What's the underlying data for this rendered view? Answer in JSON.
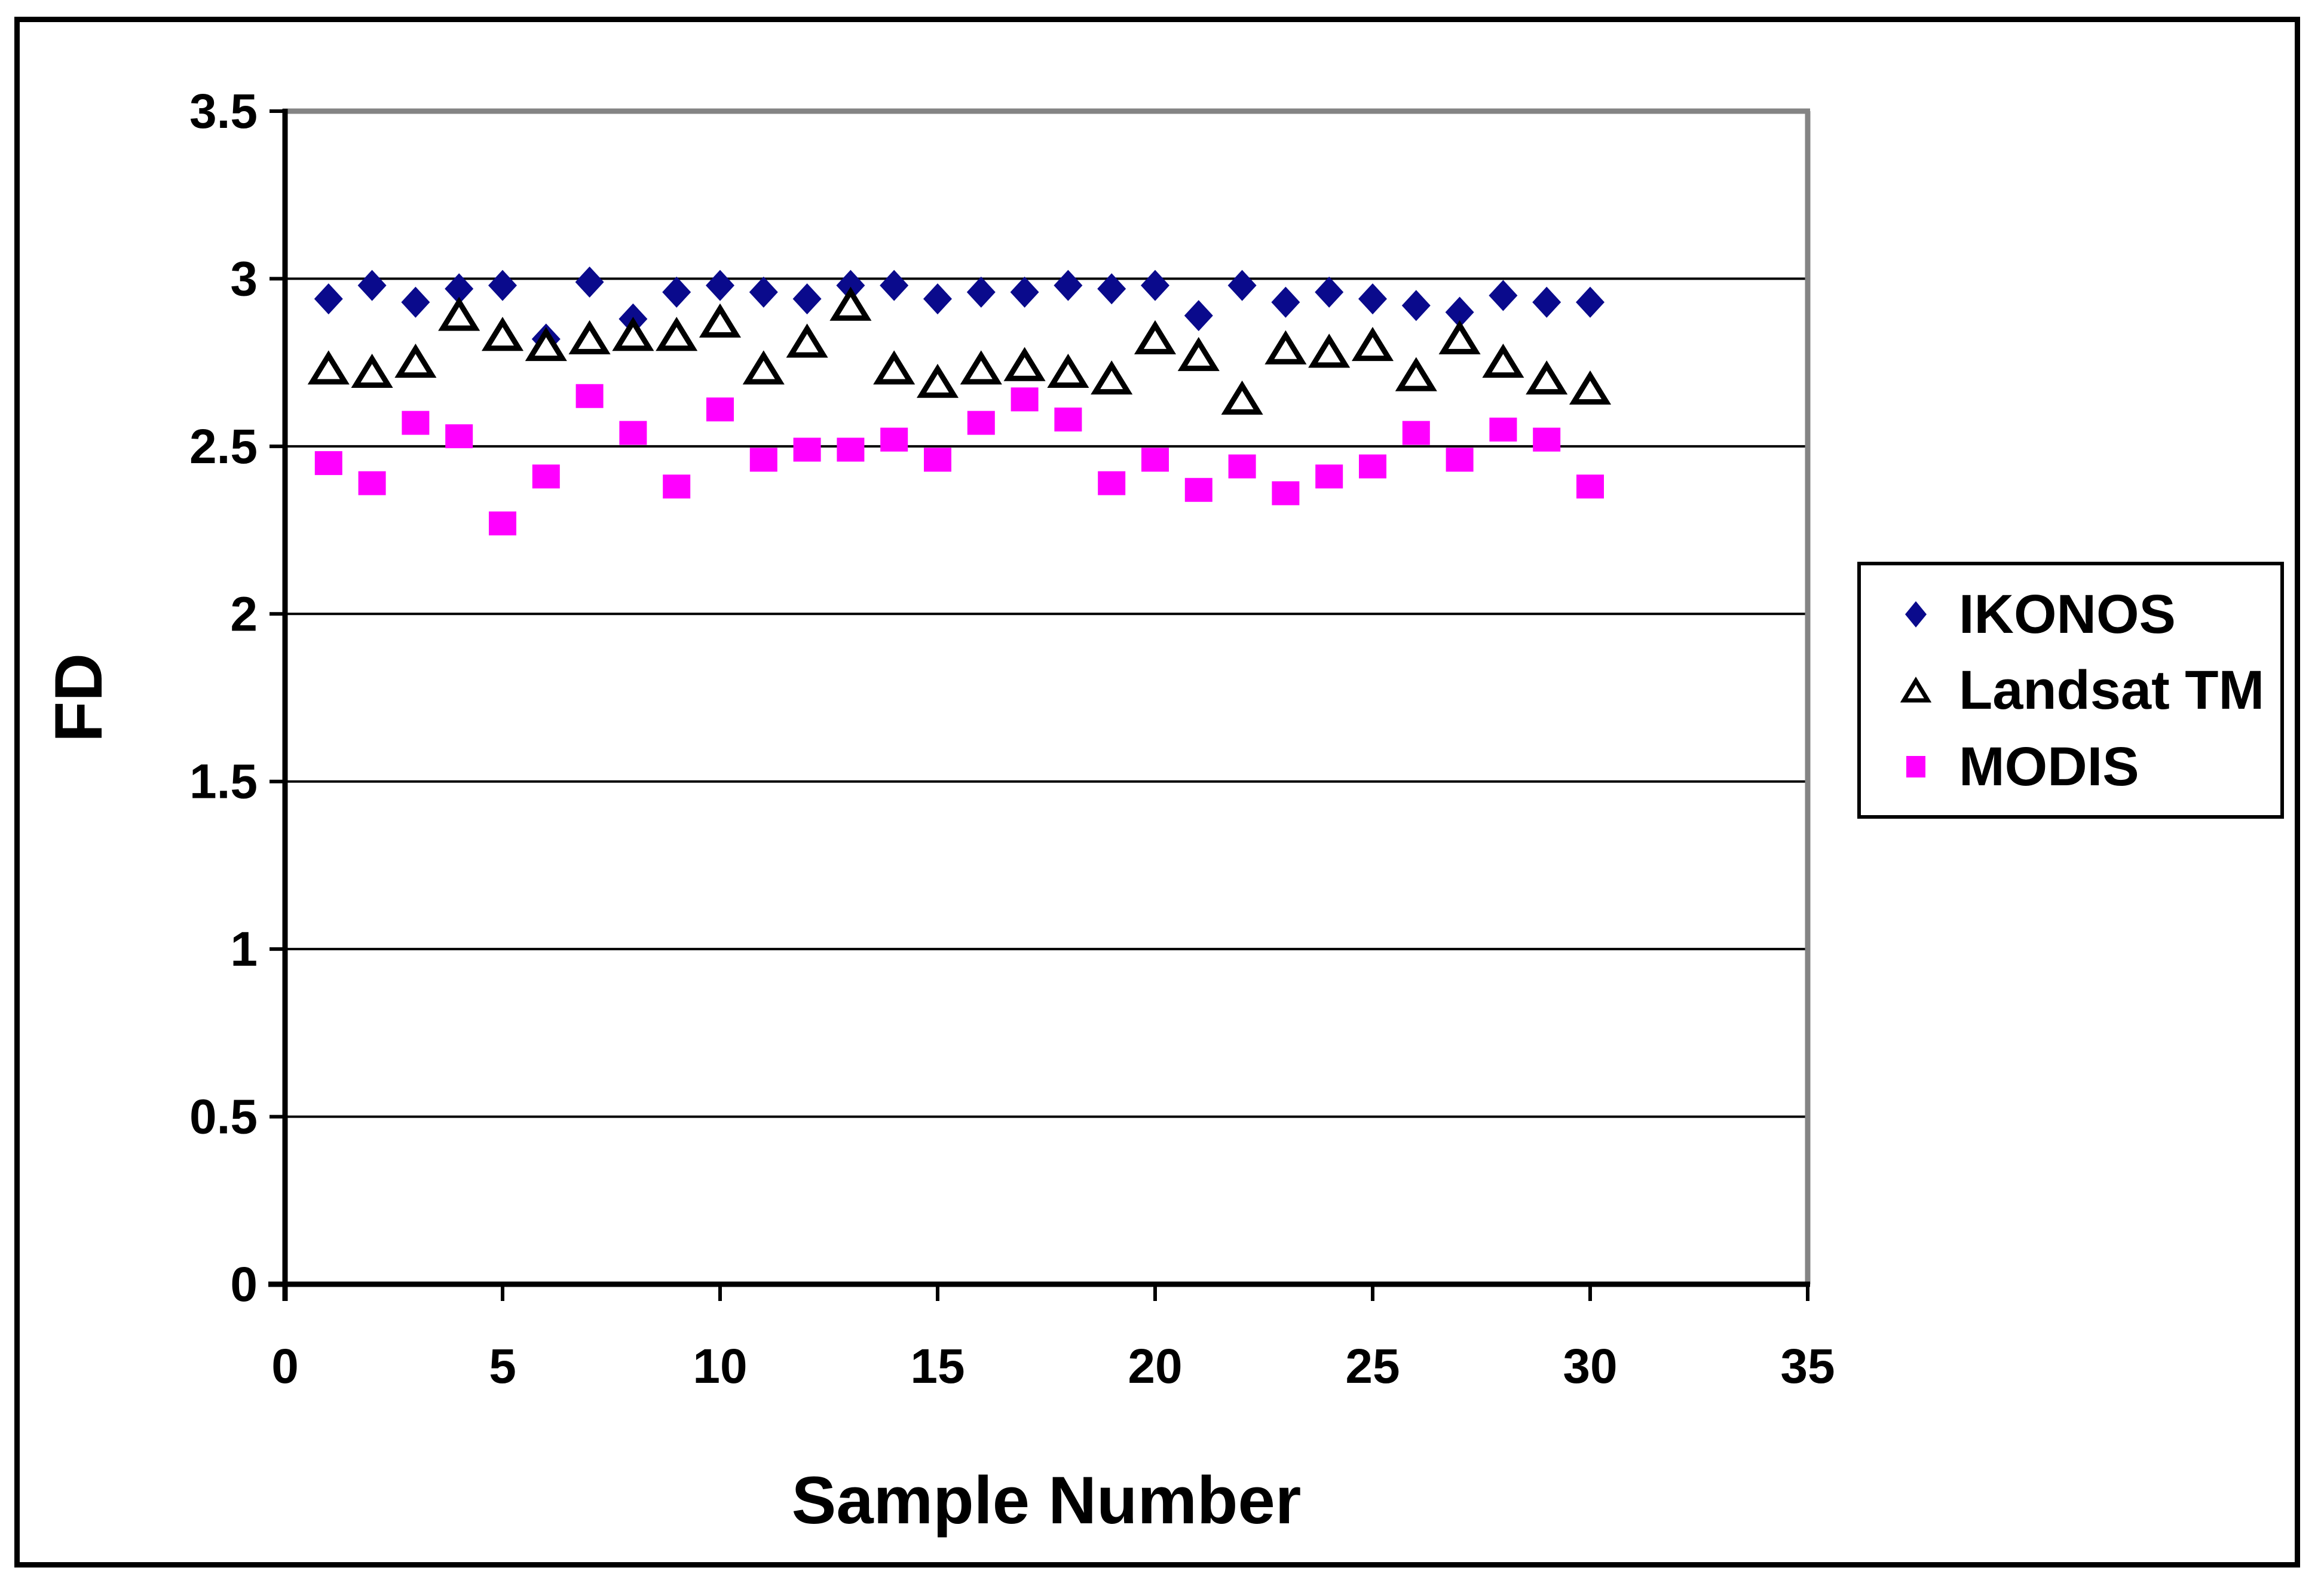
{
  "chart_data": {
    "type": "scatter",
    "title": "",
    "xlabel": "Sample Number",
    "ylabel": "FD",
    "xlim": [
      0,
      35
    ],
    "ylim": [
      0,
      3.5
    ],
    "x_ticks": [
      0,
      5,
      10,
      15,
      20,
      25,
      30,
      35
    ],
    "y_ticks": [
      0,
      0.5,
      1,
      1.5,
      2,
      2.5,
      3,
      3.5
    ],
    "grid": true,
    "legend_position": "right",
    "x": [
      1,
      2,
      3,
      4,
      5,
      6,
      7,
      8,
      9,
      10,
      11,
      12,
      13,
      14,
      15,
      16,
      17,
      18,
      19,
      20,
      21,
      22,
      23,
      24,
      25,
      26,
      27,
      28,
      29,
      30
    ],
    "series": [
      {
        "name": "IKONOS",
        "marker": "diamond",
        "color": "#0A0A8C",
        "values": [
          2.94,
          2.98,
          2.93,
          2.97,
          2.98,
          2.82,
          2.99,
          2.88,
          2.96,
          2.98,
          2.96,
          2.94,
          2.98,
          2.98,
          2.94,
          2.96,
          2.96,
          2.98,
          2.97,
          2.98,
          2.89,
          2.98,
          2.93,
          2.96,
          2.94,
          2.92,
          2.9,
          2.95,
          2.93,
          2.93
        ]
      },
      {
        "name": "Landsat TM",
        "marker": "triangle-open",
        "color": "#000000",
        "fill": "#FFFFFF",
        "values": [
          2.73,
          2.72,
          2.75,
          2.89,
          2.83,
          2.8,
          2.82,
          2.83,
          2.83,
          2.87,
          2.73,
          2.81,
          2.92,
          2.73,
          2.69,
          2.73,
          2.74,
          2.72,
          2.7,
          2.82,
          2.77,
          2.64,
          2.79,
          2.78,
          2.8,
          2.71,
          2.82,
          2.75,
          2.7,
          2.67
        ]
      },
      {
        "name": "MODIS",
        "marker": "square",
        "color": "#FF00FF",
        "values": [
          2.45,
          2.39,
          2.57,
          2.53,
          2.27,
          2.41,
          2.65,
          2.54,
          2.38,
          2.61,
          2.46,
          2.49,
          2.49,
          2.52,
          2.46,
          2.57,
          2.64,
          2.58,
          2.39,
          2.46,
          2.37,
          2.44,
          2.36,
          2.41,
          2.44,
          2.54,
          2.46,
          2.55,
          2.52,
          2.38
        ]
      }
    ]
  },
  "colors": {
    "ikonos": "#0A0A8C",
    "modis": "#FF00FF",
    "landsat_stroke": "#000000",
    "gridline": "#000000",
    "plot_border_gray": "#848484",
    "frame": "#000000"
  }
}
